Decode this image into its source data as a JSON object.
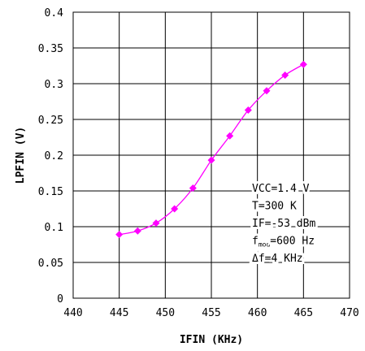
{
  "chart_data": {
    "type": "line",
    "title": "",
    "xlabel": "IFIN (KHz)",
    "ylabel": "LPFIN (V)",
    "xlim": [
      440,
      470
    ],
    "ylim": [
      0,
      0.4
    ],
    "xticks": [
      "440",
      "445",
      "450",
      "455",
      "460",
      "465",
      "470"
    ],
    "yticks": [
      "0",
      "0.05",
      "0.1",
      "0.15",
      "0.2",
      "0.25",
      "0.3",
      "0.35",
      "0.4"
    ],
    "grid": true,
    "series": [
      {
        "color": "#ff00ff",
        "marker": "diamond",
        "x": [
          445,
          447,
          449,
          451,
          453,
          455,
          457,
          459,
          461,
          463,
          465
        ],
        "y": [
          0.089,
          0.094,
          0.105,
          0.125,
          0.154,
          0.193,
          0.227,
          0.263,
          0.29,
          0.312,
          0.327
        ]
      }
    ],
    "annotations": [
      {
        "text": "VCC=1.4 V"
      },
      {
        "text": "T=300 K"
      },
      {
        "text": "IF=-53 dBm"
      },
      {
        "pre": "f",
        "sub": "mod",
        "post": "=600 Hz"
      },
      {
        "text": "Δf=4 KHz"
      }
    ]
  }
}
